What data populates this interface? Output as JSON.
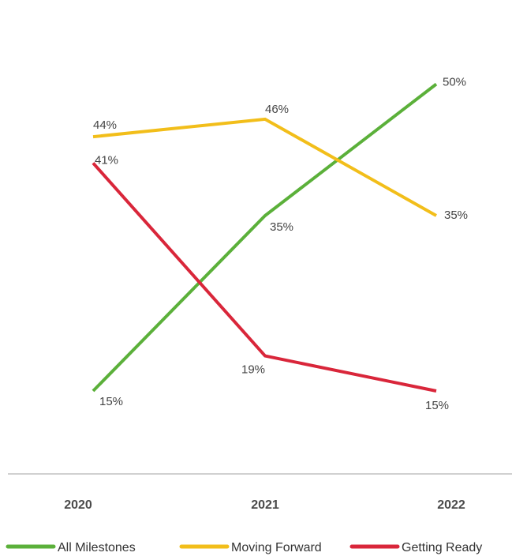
{
  "chart_data": {
    "type": "line",
    "x": [
      "2020",
      "2021",
      "2022"
    ],
    "series": [
      {
        "name": "All Milestones",
        "color": "#5BB03A",
        "values": [
          15,
          35,
          50
        ],
        "labels": [
          "15%",
          "35%",
          "50%"
        ]
      },
      {
        "name": "Moving Forward",
        "color": "#F2BE1A",
        "values": [
          44,
          46,
          35
        ],
        "labels": [
          "44%",
          "46%",
          "35%"
        ]
      },
      {
        "name": "Getting Ready",
        "color": "#D9263A",
        "values": [
          41,
          19,
          15
        ],
        "labels": [
          "41%",
          "19%",
          "15%"
        ]
      }
    ],
    "value_format": "percent",
    "axis_color": "#D0D0D0",
    "legend_position": "bottom",
    "grid": false
  }
}
